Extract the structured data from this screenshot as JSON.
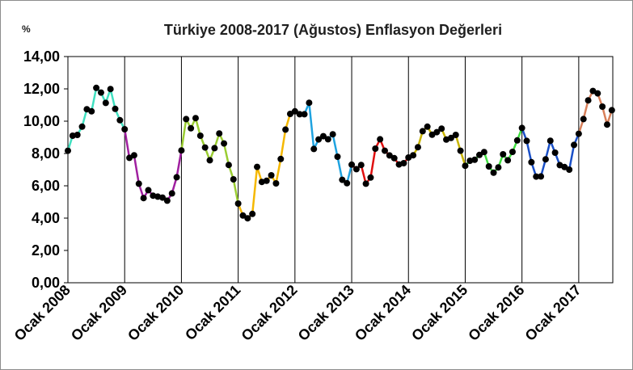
{
  "chart_data": {
    "type": "line",
    "title": "Türkiye 2008-2017 (Ağustos) Enflasyon Değerleri",
    "unit_label": "%",
    "xlabel": "",
    "ylabel": "",
    "ylim": [
      0,
      14
    ],
    "y_ticks": [
      "0,00",
      "2,00",
      "4,00",
      "6,00",
      "8,00",
      "10,00",
      "12,00",
      "14,00"
    ],
    "x_tick_labels": [
      "Ocak 2008",
      "Ocak 2009",
      "Ocak 2010",
      "Ocak 2011",
      "Ocak 2012",
      "Ocak 2013",
      "Ocak 2014",
      "Ocak 2015",
      "Ocak 2016",
      "Ocak 2017"
    ],
    "grid": "vertical year separators",
    "legend": "none",
    "series": [
      {
        "year": "2008",
        "color": "#40e0c0",
        "values": [
          8.17,
          9.1,
          9.15,
          9.66,
          10.74,
          10.61,
          12.06,
          11.77,
          11.13,
          11.99,
          10.76,
          10.06
        ]
      },
      {
        "year": "2009",
        "color": "#a020a0",
        "values": [
          9.5,
          7.73,
          7.89,
          6.13,
          5.24,
          5.73,
          5.39,
          5.33,
          5.27,
          5.08,
          5.53,
          6.53
        ]
      },
      {
        "year": "2010",
        "color": "#9acd32",
        "values": [
          8.19,
          10.13,
          9.56,
          10.19,
          9.1,
          8.37,
          7.58,
          8.33,
          9.24,
          8.62,
          7.29,
          6.4
        ]
      },
      {
        "year": "2011",
        "color": "#f5b800",
        "values": [
          4.9,
          4.16,
          3.99,
          4.26,
          7.17,
          6.24,
          6.31,
          6.65,
          6.15,
          7.66,
          9.48,
          10.45
        ]
      },
      {
        "year": "2012",
        "color": "#1fa3e0",
        "values": [
          10.61,
          10.43,
          10.43,
          11.14,
          8.28,
          8.87,
          9.07,
          8.88,
          9.19,
          7.8,
          6.37,
          6.16
        ]
      },
      {
        "year": "2013",
        "color": "#e01010",
        "values": [
          7.31,
          7.03,
          7.29,
          6.13,
          6.51,
          8.3,
          8.88,
          8.17,
          7.88,
          7.71,
          7.32,
          7.4
        ]
      },
      {
        "year": "2014",
        "color": "#c8b400",
        "values": [
          7.75,
          7.89,
          8.39,
          9.38,
          9.66,
          9.16,
          9.32,
          9.54,
          8.86,
          8.96,
          9.15,
          8.17
        ]
      },
      {
        "year": "2015",
        "color": "#40e040",
        "values": [
          7.24,
          7.55,
          7.61,
          7.91,
          8.09,
          7.2,
          6.81,
          7.14,
          7.95,
          7.58,
          8.1,
          8.81
        ]
      },
      {
        "year": "2016",
        "color": "#1a50c8",
        "values": [
          9.58,
          8.78,
          7.46,
          6.57,
          6.58,
          7.64,
          8.79,
          8.05,
          7.28,
          7.16,
          7.0,
          8.53
        ]
      },
      {
        "year": "2017",
        "color": "#d8805a",
        "values": [
          9.22,
          10.13,
          11.29,
          11.87,
          11.72,
          10.9,
          9.79,
          10.68
        ]
      }
    ]
  }
}
